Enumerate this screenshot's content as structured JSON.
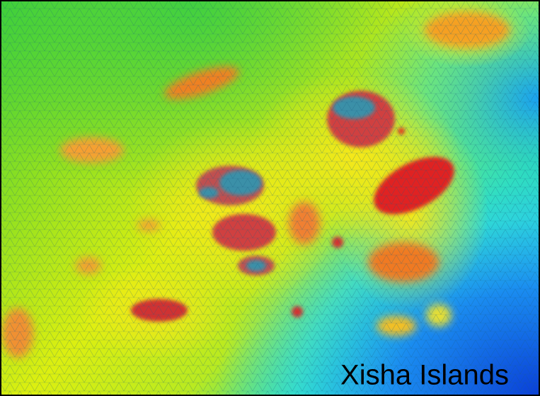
{
  "label": "Xisha Islands"
}
